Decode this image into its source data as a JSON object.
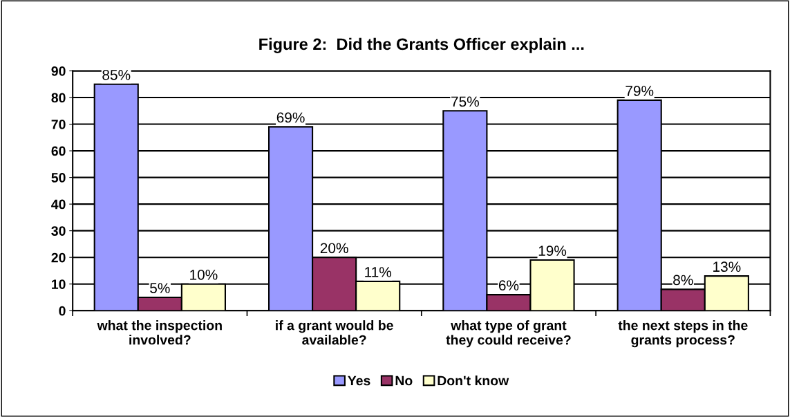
{
  "chart_data": {
    "type": "bar",
    "title": "Figure 2:  Did the Grants Officer explain ...",
    "categories": [
      "what the inspection\ninvolved?",
      "if a grant would be\navailable?",
      "what type of grant\nthey could receive?",
      "the next steps in the\ngrants process?"
    ],
    "series": [
      {
        "name": "Yes",
        "color": "#9999ff",
        "values": [
          85,
          69,
          75,
          79
        ],
        "value_labels": [
          "85%",
          "69%",
          "75%",
          "79%"
        ]
      },
      {
        "name": "No",
        "color": "#993366",
        "values": [
          5,
          20,
          6,
          8
        ],
        "value_labels": [
          "5%",
          "20%",
          "6%",
          "8%"
        ]
      },
      {
        "name": "Don't know",
        "color": "#ffffcc",
        "values": [
          10,
          11,
          19,
          13
        ],
        "value_labels": [
          "10%",
          "11%",
          "19%",
          "13%"
        ]
      }
    ],
    "ylim": [
      0,
      90
    ],
    "yticks": [
      0,
      10,
      20,
      30,
      40,
      50,
      60,
      70,
      80,
      90
    ],
    "grid": "y",
    "legend": "bottom"
  }
}
